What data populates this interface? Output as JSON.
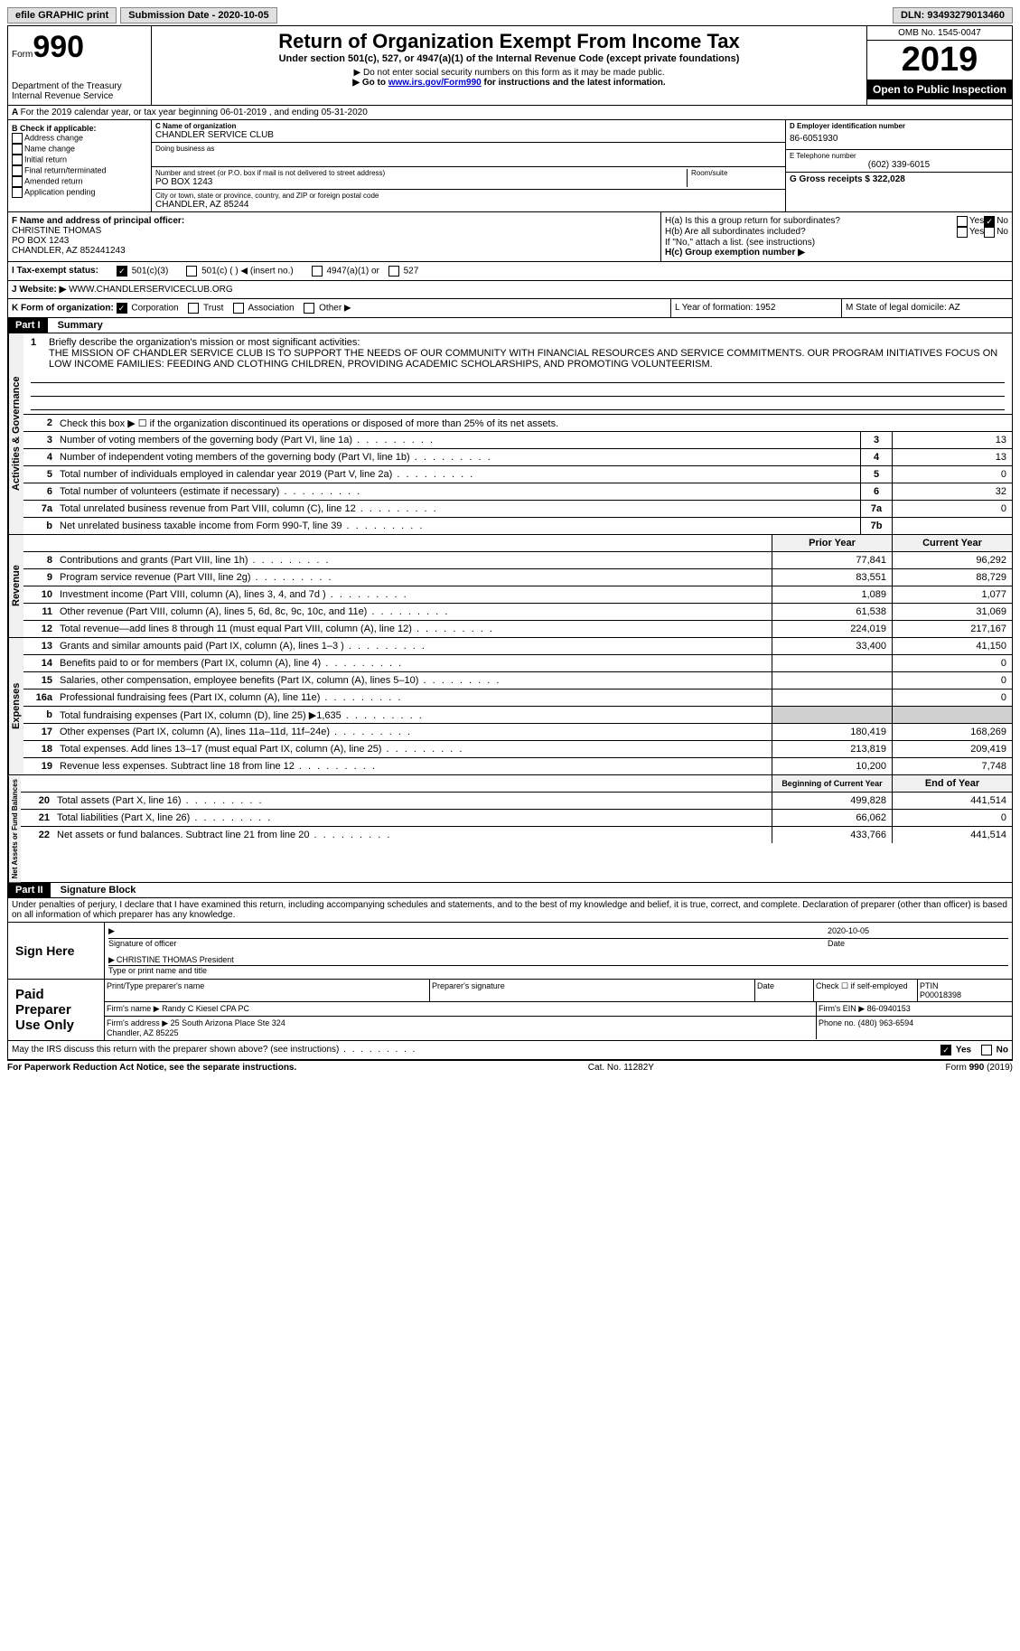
{
  "topbar": {
    "efile": "efile GRAPHIC print",
    "submission_label": "Submission Date - 2020-10-05",
    "dln_label": "DLN: 93493279013460"
  },
  "header": {
    "form_label": "Form",
    "form_number": "990",
    "dept": "Department of the Treasury\nInternal Revenue Service",
    "title": "Return of Organization Exempt From Income Tax",
    "subtitle": "Under section 501(c), 527, or 4947(a)(1) of the Internal Revenue Code (except private foundations)",
    "note1": "▶ Do not enter social security numbers on this form as it may be made public.",
    "note2_pre": "▶ Go to ",
    "note2_link": "www.irs.gov/Form990",
    "note2_post": " for instructions and the latest information.",
    "omb": "OMB No. 1545-0047",
    "year": "2019",
    "inspection": "Open to Public Inspection"
  },
  "section_a": "For the 2019 calendar year, or tax year beginning 06-01-2019    , and ending 05-31-2020",
  "box_b": {
    "label": "B Check if applicable:",
    "items": [
      "Address change",
      "Name change",
      "Initial return",
      "Final return/terminated",
      "Amended return",
      "Application pending"
    ]
  },
  "box_c": {
    "name_label": "C Name of organization",
    "name": "CHANDLER SERVICE CLUB",
    "dba_label": "Doing business as",
    "addr_label": "Number and street (or P.O. box if mail is not delivered to street address)",
    "room_label": "Room/suite",
    "addr": "PO BOX 1243",
    "city_label": "City or town, state or province, country, and ZIP or foreign postal code",
    "city": "CHANDLER, AZ  85244"
  },
  "box_d": {
    "label": "D Employer identification number",
    "value": "86-6051930"
  },
  "box_e": {
    "label": "E Telephone number",
    "value": "(602) 339-6015"
  },
  "box_g": {
    "label": "G Gross receipts $ 322,028"
  },
  "box_f": {
    "label": "F  Name and address of principal officer:",
    "name": "CHRISTINE THOMAS",
    "addr1": "PO BOX 1243",
    "addr2": "CHANDLER, AZ  852441243"
  },
  "box_h": {
    "ha": "H(a)  Is this a group return for subordinates?",
    "hb": "H(b)  Are all subordinates included?",
    "hb_note": "If \"No,\" attach a list. (see instructions)",
    "hc": "H(c)  Group exemption number ▶",
    "yes": "Yes",
    "no": "No"
  },
  "box_i": {
    "label": "I  Tax-exempt status:",
    "c3": "501(c)(3)",
    "c": "501(c) (  ) ◀ (insert no.)",
    "a1": "4947(a)(1) or",
    "s527": "527"
  },
  "box_j": {
    "label": "J  Website: ▶",
    "value": "WWW.CHANDLERSERVICECLUB.ORG"
  },
  "box_k": {
    "label": "K Form of organization:",
    "corp": "Corporation",
    "trust": "Trust",
    "assoc": "Association",
    "other": "Other ▶"
  },
  "box_l": {
    "label": "L Year of formation: 1952"
  },
  "box_m": {
    "label": "M State of legal domicile: AZ"
  },
  "part1": {
    "hdr": "Part I",
    "title": "Summary",
    "line1_label": "Briefly describe the organization's mission or most significant activities:",
    "mission": "THE MISSION OF CHANDLER SERVICE CLUB IS TO SUPPORT THE NEEDS OF OUR COMMUNITY WITH FINANCIAL RESOURCES AND SERVICE COMMITMENTS. OUR PROGRAM INITIATIVES FOCUS ON LOW INCOME FAMILIES: FEEDING AND CLOTHING CHILDREN, PROVIDING ACADEMIC SCHOLARSHIPS, AND PROMOTING VOLUNTEERISM.",
    "line2": "Check this box ▶ ☐  if the organization discontinued its operations or disposed of more than 25% of its net assets.",
    "gov_lines": [
      {
        "n": "3",
        "t": "Number of voting members of the governing body (Part VI, line 1a)",
        "box": "3",
        "v": "13"
      },
      {
        "n": "4",
        "t": "Number of independent voting members of the governing body (Part VI, line 1b)",
        "box": "4",
        "v": "13"
      },
      {
        "n": "5",
        "t": "Total number of individuals employed in calendar year 2019 (Part V, line 2a)",
        "box": "5",
        "v": "0"
      },
      {
        "n": "6",
        "t": "Total number of volunteers (estimate if necessary)",
        "box": "6",
        "v": "32"
      },
      {
        "n": "7a",
        "t": "Total unrelated business revenue from Part VIII, column (C), line 12",
        "box": "7a",
        "v": "0"
      },
      {
        "n": "b",
        "t": "Net unrelated business taxable income from Form 990-T, line 39",
        "box": "7b",
        "v": ""
      }
    ],
    "col_prior": "Prior Year",
    "col_current": "Current Year",
    "rev_lines": [
      {
        "n": "8",
        "t": "Contributions and grants (Part VIII, line 1h)",
        "p": "77,841",
        "c": "96,292"
      },
      {
        "n": "9",
        "t": "Program service revenue (Part VIII, line 2g)",
        "p": "83,551",
        "c": "88,729"
      },
      {
        "n": "10",
        "t": "Investment income (Part VIII, column (A), lines 3, 4, and 7d )",
        "p": "1,089",
        "c": "1,077"
      },
      {
        "n": "11",
        "t": "Other revenue (Part VIII, column (A), lines 5, 6d, 8c, 9c, 10c, and 11e)",
        "p": "61,538",
        "c": "31,069"
      },
      {
        "n": "12",
        "t": "Total revenue—add lines 8 through 11 (must equal Part VIII, column (A), line 12)",
        "p": "224,019",
        "c": "217,167"
      }
    ],
    "exp_lines": [
      {
        "n": "13",
        "t": "Grants and similar amounts paid (Part IX, column (A), lines 1–3 )",
        "p": "33,400",
        "c": "41,150"
      },
      {
        "n": "14",
        "t": "Benefits paid to or for members (Part IX, column (A), line 4)",
        "p": "",
        "c": "0"
      },
      {
        "n": "15",
        "t": "Salaries, other compensation, employee benefits (Part IX, column (A), lines 5–10)",
        "p": "",
        "c": "0"
      },
      {
        "n": "16a",
        "t": "Professional fundraising fees (Part IX, column (A), line 11e)",
        "p": "",
        "c": "0"
      },
      {
        "n": "b",
        "t": "Total fundraising expenses (Part IX, column (D), line 25) ▶1,635",
        "p": "",
        "c": "",
        "gray": true
      },
      {
        "n": "17",
        "t": "Other expenses (Part IX, column (A), lines 11a–11d, 11f–24e)",
        "p": "180,419",
        "c": "168,269"
      },
      {
        "n": "18",
        "t": "Total expenses. Add lines 13–17 (must equal Part IX, column (A), line 25)",
        "p": "213,819",
        "c": "209,419"
      },
      {
        "n": "19",
        "t": "Revenue less expenses. Subtract line 18 from line 12",
        "p": "10,200",
        "c": "7,748"
      }
    ],
    "col_begin": "Beginning of Current Year",
    "col_end": "End of Year",
    "na_lines": [
      {
        "n": "20",
        "t": "Total assets (Part X, line 16)",
        "p": "499,828",
        "c": "441,514"
      },
      {
        "n": "21",
        "t": "Total liabilities (Part X, line 26)",
        "p": "66,062",
        "c": "0"
      },
      {
        "n": "22",
        "t": "Net assets or fund balances. Subtract line 21 from line 20",
        "p": "433,766",
        "c": "441,514"
      }
    ],
    "vert_gov": "Activities & Governance",
    "vert_rev": "Revenue",
    "vert_exp": "Expenses",
    "vert_na": "Net Assets or Fund Balances"
  },
  "part2": {
    "hdr": "Part II",
    "title": "Signature Block",
    "declaration": "Under penalties of perjury, I declare that I have examined this return, including accompanying schedules and statements, and to the best of my knowledge and belief, it is true, correct, and complete. Declaration of preparer (other than officer) is based on all information of which preparer has any knowledge.",
    "sign_here": "Sign Here",
    "sig_officer": "Signature of officer",
    "sig_date": "2020-10-05",
    "date_label": "Date",
    "officer_name": "CHRISTINE THOMAS President",
    "type_label": "Type or print name and title",
    "paid_prep": "Paid Preparer Use Only",
    "prep_name_label": "Print/Type preparer's name",
    "prep_sig_label": "Preparer's signature",
    "check_label": "Check ☐ if self-employed",
    "ptin_label": "PTIN",
    "ptin": "P00018398",
    "firm_name_label": "Firm's name   ▶",
    "firm_name": "Randy C Kiesel CPA PC",
    "firm_ein_label": "Firm's EIN ▶",
    "firm_ein": "86-0940153",
    "firm_addr_label": "Firm's address ▶",
    "firm_addr": "25 South Arizona Place Ste 324\nChandler, AZ  85225",
    "phone_label": "Phone no.",
    "phone": "(480) 963-6594",
    "discuss": "May the IRS discuss this return with the preparer shown above? (see instructions)",
    "yes": "Yes",
    "no": "No"
  },
  "footer": {
    "paperwork": "For Paperwork Reduction Act Notice, see the separate instructions.",
    "cat": "Cat. No. 11282Y",
    "form": "Form 990 (2019)"
  }
}
